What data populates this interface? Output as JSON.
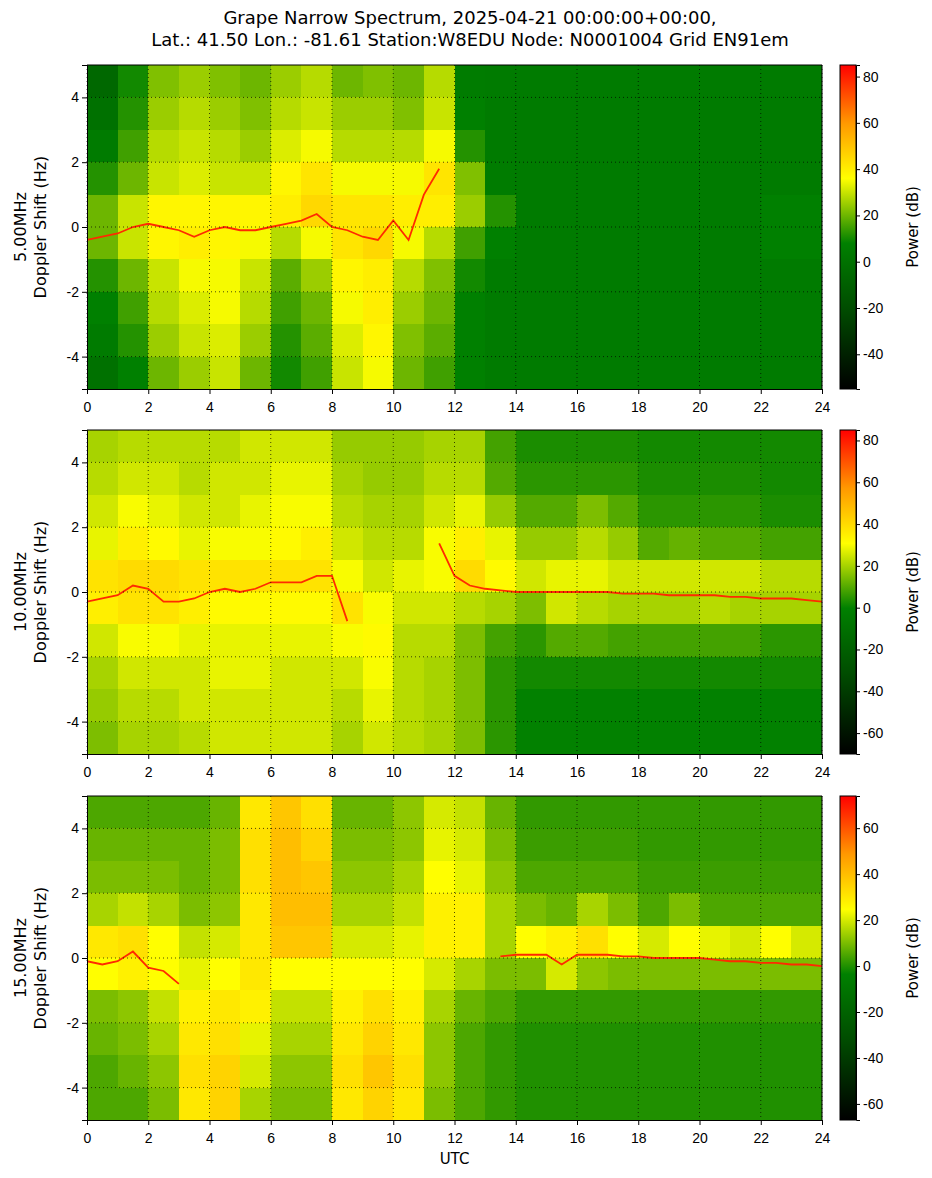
{
  "title": [
    "Grape Narrow Spectrum, 2025-04-21 00:00:00+00:00,",
    "Lat.: 41.50 Lon.: -81.61 Station:W8EDU Node: N0001004 Grid EN91em"
  ],
  "chart_data": [
    {
      "type": "heatmap",
      "ylabel": [
        "5.00MHz",
        "Doppler Shift (Hz)"
      ],
      "xlim": [
        0,
        24
      ],
      "xticks": [
        0,
        2,
        4,
        6,
        8,
        10,
        12,
        14,
        16,
        18,
        20,
        22,
        24
      ],
      "ylim": [
        -5,
        5
      ],
      "yticks": [
        -4,
        -2,
        0,
        2,
        4
      ],
      "grid": true,
      "x_bins": [
        0,
        1,
        2,
        3,
        4,
        5,
        6,
        7,
        8,
        9,
        10,
        11,
        12,
        13,
        14,
        15,
        16,
        17,
        18,
        19,
        20,
        21,
        22,
        23,
        24
      ],
      "y_bins": [
        -5,
        -4,
        -3,
        -2,
        -1,
        0,
        1,
        2,
        3,
        4,
        5
      ],
      "cells": [
        [
          0,
          8,
          20,
          25,
          30,
          20,
          10,
          15,
          30,
          35,
          20,
          15,
          8,
          5,
          5,
          5,
          5,
          5,
          5,
          5,
          5,
          5,
          5,
          5
        ],
        [
          5,
          12,
          25,
          30,
          32,
          25,
          12,
          18,
          32,
          38,
          22,
          18,
          8,
          5,
          5,
          5,
          5,
          5,
          5,
          5,
          5,
          5,
          5,
          5
        ],
        [
          8,
          15,
          28,
          32,
          35,
          28,
          15,
          20,
          35,
          40,
          25,
          20,
          8,
          5,
          5,
          5,
          5,
          5,
          5,
          5,
          5,
          5,
          5,
          5
        ],
        [
          12,
          20,
          30,
          35,
          35,
          30,
          18,
          25,
          38,
          40,
          28,
          22,
          10,
          6,
          5,
          5,
          5,
          5,
          5,
          5,
          5,
          5,
          5,
          5
        ],
        [
          20,
          30,
          38,
          40,
          38,
          35,
          28,
          35,
          42,
          45,
          35,
          28,
          15,
          8,
          5,
          5,
          5,
          5,
          5,
          5,
          5,
          5,
          8,
          8
        ],
        [
          20,
          30,
          38,
          38,
          38,
          38,
          40,
          45,
          42,
          42,
          40,
          40,
          25,
          12,
          5,
          5,
          5,
          5,
          5,
          5,
          5,
          5,
          8,
          8
        ],
        [
          12,
          20,
          30,
          32,
          30,
          30,
          38,
          42,
          35,
          35,
          35,
          42,
          22,
          6,
          5,
          5,
          5,
          5,
          5,
          5,
          5,
          5,
          5,
          5
        ],
        [
          5,
          15,
          28,
          30,
          28,
          25,
          32,
          35,
          28,
          28,
          28,
          35,
          12,
          5,
          5,
          5,
          5,
          5,
          5,
          5,
          5,
          5,
          5,
          5
        ],
        [
          0,
          12,
          25,
          28,
          25,
          22,
          28,
          30,
          25,
          25,
          22,
          30,
          8,
          5,
          5,
          5,
          5,
          5,
          5,
          5,
          5,
          5,
          5,
          5
        ],
        [
          -5,
          10,
          22,
          25,
          22,
          20,
          25,
          28,
          20,
          22,
          20,
          28,
          6,
          5,
          5,
          5,
          5,
          5,
          5,
          5,
          5,
          5,
          5,
          5
        ]
      ],
      "colorbar_label": "Power (dB)",
      "colorbar_lim": [
        -55,
        85
      ],
      "colorbar_ticks": [
        -40,
        -20,
        0,
        20,
        40,
        60,
        80
      ],
      "trace": {
        "color": "#ff2a00",
        "x": [
          0,
          0.5,
          1,
          1.5,
          2,
          2.5,
          3,
          3.5,
          4,
          4.5,
          5,
          5.5,
          6,
          6.5,
          7,
          7.5,
          8,
          8.5,
          9,
          9.5,
          10,
          10.5,
          11,
          11.5,
          12,
          12.5,
          13,
          13.5,
          14,
          14.5,
          15,
          15.5,
          16,
          16.5,
          17,
          17.5,
          18,
          18.5,
          19,
          19.5,
          20,
          20.5,
          21,
          21.5,
          22,
          22.5,
          23,
          23.5,
          24
        ],
        "values": [
          -0.4,
          -0.3,
          -0.2,
          0,
          0.1,
          0,
          -0.1,
          -0.3,
          -0.1,
          0,
          -0.1,
          -0.1,
          0,
          0.1,
          0.2,
          0.4,
          0,
          -0.1,
          -0.3,
          -0.4,
          0.2,
          -0.4,
          1.0,
          1.8,
          null,
          null,
          null,
          null,
          null,
          null,
          null,
          null,
          null,
          null,
          null,
          null,
          null,
          null,
          null,
          null,
          null,
          null,
          null,
          null,
          null,
          null,
          null,
          null,
          null
        ]
      }
    },
    {
      "type": "heatmap",
      "ylabel": [
        "10.00MHz",
        "Doppler Shift (Hz)"
      ],
      "xlim": [
        0,
        24
      ],
      "xticks": [
        0,
        2,
        4,
        6,
        8,
        10,
        12,
        14,
        16,
        18,
        20,
        22,
        24
      ],
      "ylim": [
        -5,
        5
      ],
      "yticks": [
        -4,
        -2,
        0,
        2,
        4
      ],
      "grid": true,
      "x_bins": [
        0,
        1,
        2,
        3,
        4,
        5,
        6,
        7,
        8,
        9,
        10,
        11,
        12,
        13,
        14,
        15,
        16,
        17,
        18,
        19,
        20,
        21,
        22,
        23,
        24
      ],
      "y_bins": [
        -5,
        -4,
        -3,
        -2,
        -1,
        0,
        1,
        2,
        3,
        4,
        5
      ],
      "cells": [
        [
          15,
          20,
          20,
          22,
          25,
          25,
          25,
          25,
          20,
          25,
          22,
          20,
          15,
          5,
          0,
          0,
          0,
          0,
          0,
          0,
          0,
          0,
          0,
          0
        ],
        [
          18,
          22,
          22,
          25,
          25,
          25,
          25,
          25,
          22,
          28,
          22,
          20,
          15,
          5,
          0,
          0,
          0,
          0,
          0,
          0,
          0,
          0,
          0,
          0
        ],
        [
          20,
          25,
          25,
          25,
          28,
          28,
          25,
          25,
          25,
          30,
          22,
          20,
          15,
          5,
          2,
          2,
          2,
          2,
          2,
          2,
          2,
          2,
          2,
          2
        ],
        [
          25,
          30,
          30,
          28,
          28,
          28,
          28,
          28,
          30,
          32,
          22,
          22,
          15,
          8,
          5,
          10,
          10,
          8,
          8,
          8,
          8,
          8,
          5,
          5
        ],
        [
          35,
          38,
          38,
          35,
          32,
          32,
          32,
          32,
          38,
          30,
          25,
          25,
          22,
          20,
          15,
          25,
          22,
          20,
          20,
          20,
          22,
          20,
          20,
          20
        ],
        [
          38,
          40,
          40,
          38,
          38,
          38,
          38,
          38,
          30,
          25,
          28,
          30,
          40,
          32,
          25,
          28,
          28,
          25,
          25,
          25,
          25,
          25,
          22,
          22
        ],
        [
          28,
          35,
          32,
          28,
          30,
          30,
          32,
          35,
          25,
          22,
          22,
          30,
          35,
          28,
          18,
          18,
          22,
          18,
          10,
          12,
          10,
          10,
          8,
          8
        ],
        [
          25,
          30,
          28,
          25,
          25,
          28,
          30,
          30,
          22,
          20,
          20,
          25,
          28,
          18,
          10,
          10,
          15,
          10,
          5,
          5,
          5,
          5,
          3,
          3
        ],
        [
          22,
          25,
          25,
          22,
          25,
          25,
          28,
          28,
          20,
          18,
          18,
          22,
          22,
          10,
          5,
          5,
          5,
          5,
          3,
          3,
          3,
          3,
          2,
          2
        ],
        [
          20,
          22,
          22,
          22,
          22,
          25,
          25,
          25,
          18,
          18,
          18,
          20,
          20,
          8,
          3,
          3,
          3,
          3,
          2,
          2,
          2,
          2,
          2,
          2
        ]
      ],
      "colorbar_label": "Power (dB)",
      "colorbar_lim": [
        -70,
        85
      ],
      "colorbar_ticks": [
        -60,
        -40,
        -20,
        0,
        20,
        40,
        60,
        80
      ],
      "trace": {
        "color": "#ff2a00",
        "x": [
          0,
          0.5,
          1,
          1.5,
          2,
          2.5,
          3,
          3.5,
          4,
          4.5,
          5,
          5.5,
          6,
          6.5,
          7,
          7.5,
          8,
          8.5,
          9,
          9.5,
          10,
          10.5,
          11,
          11.5,
          12,
          12.5,
          13,
          13.5,
          14,
          14.5,
          15,
          15.5,
          16,
          16.5,
          17,
          17.5,
          18,
          18.5,
          19,
          19.5,
          20,
          20.5,
          21,
          21.5,
          22,
          22.5,
          23,
          23.5,
          24
        ],
        "values": [
          -0.3,
          -0.2,
          -0.1,
          0.2,
          0.1,
          -0.3,
          -0.3,
          -0.2,
          0,
          0.1,
          0,
          0.1,
          0.3,
          0.3,
          0.3,
          0.5,
          0.5,
          -0.9,
          null,
          null,
          null,
          null,
          null,
          1.5,
          0.5,
          0.2,
          0.1,
          0.05,
          0,
          0,
          0,
          0,
          0,
          0,
          0,
          -0.05,
          -0.05,
          -0.05,
          -0.1,
          -0.1,
          -0.1,
          -0.1,
          -0.15,
          -0.15,
          -0.2,
          -0.2,
          -0.2,
          -0.25,
          -0.3
        ]
      }
    },
    {
      "type": "heatmap",
      "ylabel": [
        "15.00MHz",
        "Doppler Shift (Hz)"
      ],
      "xlabel": "UTC",
      "xlim": [
        0,
        24
      ],
      "xticks": [
        0,
        2,
        4,
        6,
        8,
        10,
        12,
        14,
        16,
        18,
        20,
        22,
        24
      ],
      "ylim": [
        -5,
        5
      ],
      "yticks": [
        -4,
        -2,
        0,
        2,
        4
      ],
      "grid": true,
      "x_bins": [
        0,
        1,
        2,
        3,
        4,
        5,
        6,
        7,
        8,
        9,
        10,
        11,
        12,
        13,
        14,
        15,
        16,
        17,
        18,
        19,
        20,
        21,
        22,
        23,
        24
      ],
      "y_bins": [
        -5,
        -4,
        -3,
        -2,
        -1,
        0,
        1,
        2,
        3,
        4,
        5
      ],
      "cells": [
        [
          5,
          5,
          10,
          30,
          35,
          15,
          10,
          10,
          30,
          35,
          30,
          10,
          5,
          2,
          0,
          0,
          0,
          0,
          0,
          0,
          0,
          0,
          0,
          0
        ],
        [
          5,
          8,
          12,
          32,
          35,
          20,
          12,
          12,
          32,
          38,
          32,
          12,
          5,
          2,
          0,
          0,
          0,
          0,
          0,
          0,
          0,
          0,
          0,
          0
        ],
        [
          8,
          10,
          15,
          30,
          32,
          22,
          15,
          15,
          30,
          35,
          30,
          12,
          5,
          2,
          0,
          0,
          0,
          0,
          0,
          0,
          0,
          0,
          0,
          0
        ],
        [
          10,
          12,
          18,
          28,
          30,
          28,
          18,
          18,
          28,
          32,
          28,
          15,
          8,
          5,
          2,
          2,
          2,
          2,
          2,
          2,
          2,
          2,
          2,
          2
        ],
        [
          25,
          28,
          25,
          22,
          25,
          30,
          25,
          25,
          25,
          25,
          25,
          20,
          15,
          10,
          10,
          20,
          12,
          10,
          10,
          10,
          10,
          10,
          10,
          10
        ],
        [
          30,
          32,
          25,
          18,
          20,
          30,
          38,
          38,
          20,
          20,
          22,
          28,
          28,
          15,
          25,
          28,
          32,
          25,
          20,
          25,
          22,
          20,
          25,
          20
        ],
        [
          15,
          18,
          15,
          10,
          12,
          30,
          40,
          40,
          15,
          15,
          18,
          28,
          28,
          15,
          10,
          8,
          15,
          10,
          5,
          10,
          5,
          5,
          5,
          5
        ],
        [
          10,
          10,
          10,
          8,
          10,
          32,
          40,
          38,
          12,
          12,
          15,
          25,
          22,
          12,
          5,
          5,
          5,
          5,
          3,
          3,
          3,
          3,
          3,
          3
        ],
        [
          8,
          8,
          8,
          8,
          10,
          32,
          40,
          35,
          10,
          10,
          12,
          22,
          20,
          10,
          3,
          3,
          3,
          3,
          2,
          2,
          2,
          2,
          2,
          2
        ],
        [
          5,
          5,
          5,
          5,
          8,
          30,
          38,
          32,
          8,
          8,
          12,
          20,
          18,
          8,
          2,
          2,
          2,
          2,
          2,
          2,
          2,
          2,
          2,
          2
        ]
      ],
      "colorbar_label": "Power (dB)",
      "colorbar_lim": [
        -67,
        74
      ],
      "colorbar_ticks": [
        -60,
        -40,
        -20,
        0,
        20,
        40,
        60
      ],
      "trace": {
        "color": "#ff2a00",
        "x": [
          0,
          0.5,
          1,
          1.5,
          2,
          2.5,
          3,
          3.5,
          4,
          4.5,
          5,
          5.5,
          6,
          6.5,
          7,
          7.5,
          8,
          8.5,
          9,
          9.5,
          10,
          10.5,
          11,
          11.5,
          12,
          12.5,
          13,
          13.5,
          14,
          14.5,
          15,
          15.5,
          16,
          16.5,
          17,
          17.5,
          18,
          18.5,
          19,
          19.5,
          20,
          20.5,
          21,
          21.5,
          22,
          22.5,
          23,
          23.5,
          24
        ],
        "values": [
          -0.1,
          -0.2,
          -0.1,
          0.2,
          -0.3,
          -0.4,
          -0.8,
          null,
          null,
          null,
          null,
          null,
          null,
          null,
          null,
          null,
          null,
          null,
          null,
          null,
          null,
          null,
          null,
          null,
          null,
          null,
          null,
          0.05,
          0.1,
          0.1,
          0.1,
          -0.2,
          0.1,
          0.1,
          0.1,
          0.05,
          0.05,
          0,
          0,
          0,
          0,
          -0.05,
          -0.1,
          -0.1,
          -0.15,
          -0.15,
          -0.2,
          -0.2,
          -0.25
        ]
      }
    }
  ]
}
